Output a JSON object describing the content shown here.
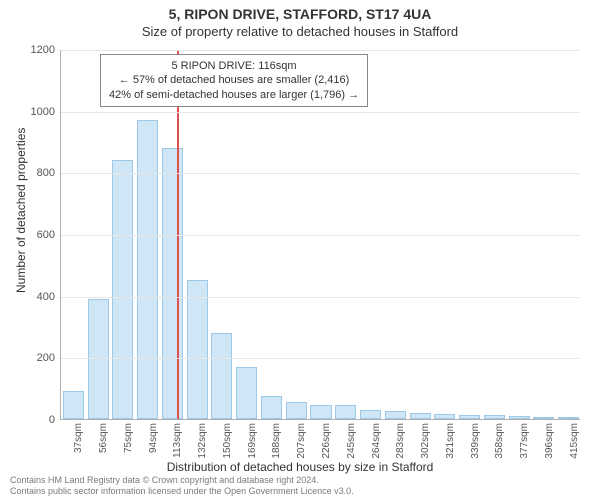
{
  "chart": {
    "type": "histogram",
    "title_main": "5, RIPON DRIVE, STAFFORD, ST17 4UA",
    "title_sub": "Size of property relative to detached houses in Stafford",
    "y_axis_label": "Number of detached properties",
    "x_axis_label": "Distribution of detached houses by size in Stafford",
    "title_fontsize": 14,
    "sub_fontsize": 13,
    "axis_label_fontsize": 12,
    "tick_fontsize": 11,
    "x_tick_fontsize": 10,
    "background_color": "#ffffff",
    "grid_color": "#e6e6e6",
    "axis_color": "#b0b0b0",
    "bar_fill": "#cfe6f7",
    "bar_border": "#9fc8e6",
    "y": {
      "min": 0,
      "max": 1200,
      "step": 200,
      "ticks": [
        0,
        200,
        400,
        600,
        800,
        1000,
        1200
      ]
    },
    "x_labels": [
      "37sqm",
      "56sqm",
      "75sqm",
      "94sqm",
      "113sqm",
      "132sqm",
      "150sqm",
      "169sqm",
      "188sqm",
      "207sqm",
      "226sqm",
      "245sqm",
      "264sqm",
      "283sqm",
      "302sqm",
      "321sqm",
      "339sqm",
      "358sqm",
      "377sqm",
      "396sqm",
      "415sqm"
    ],
    "values": [
      90,
      390,
      840,
      970,
      880,
      450,
      280,
      170,
      75,
      55,
      45,
      45,
      30,
      25,
      20,
      15,
      12,
      12,
      10,
      8,
      5
    ],
    "bar_width_ratio": 0.85,
    "annotation": {
      "property_sqm": 116,
      "line_color": "#e05050",
      "box_lines": [
        "5 RIPON DRIVE: 116sqm",
        "← 57% of detached houses are smaller (2,416)",
        "42% of semi-detached houses are larger (1,796) →"
      ],
      "box_border": "#888888",
      "box_bg": "#ffffff",
      "box_fontsize": 11
    }
  },
  "footnote": {
    "line1": "Contains HM Land Registry data © Crown copyright and database right 2024.",
    "line2": "Contains public sector information licensed under the Open Government Licence v3.0."
  }
}
